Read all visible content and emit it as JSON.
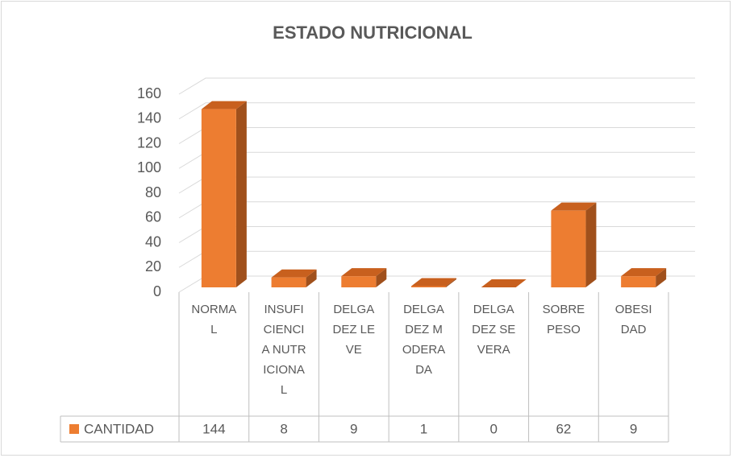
{
  "chart_data": {
    "type": "bar3d",
    "title": "ESTADO NUTRICIONAL",
    "categories": [
      "NORMAL",
      "INSUFICIENCIA NUTRICIONAL",
      "DELGADEZ LEVE",
      "DELGADEZ MODERADA",
      "DELGADEZ SEVERA",
      "SOBREPESO",
      "OBESIDAD"
    ],
    "series": [
      {
        "name": "CANTIDAD",
        "color": "#ed7d31",
        "values": [
          144,
          8,
          9,
          1,
          0,
          62,
          9
        ]
      }
    ],
    "ylim": [
      0,
      160
    ],
    "yticks": [
      0,
      20,
      40,
      60,
      80,
      100,
      120,
      140,
      160
    ],
    "grid": true,
    "data_table": true
  }
}
